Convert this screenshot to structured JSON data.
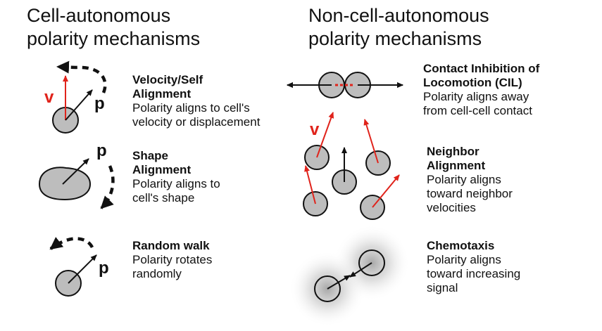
{
  "colors": {
    "velocity": "#e0231b",
    "polarity": "#111111",
    "cell_fill": "#bdbdbd",
    "cell_stroke": "#111111"
  },
  "left_column": {
    "heading_line1": "Cell-autonomous",
    "heading_line2": "polarity mechanisms"
  },
  "right_column": {
    "heading_line1": "Non-cell-autonomous",
    "heading_line2": "polarity mechanisms"
  },
  "mechanisms": {
    "velocity_alignment": {
      "title_line1": "Velocity/Self",
      "title_line2": "Alignment",
      "desc_line1": "Polarity aligns to cell's",
      "desc_line2": "velocity or displacement",
      "v_label": "v",
      "p_label": "p"
    },
    "shape_alignment": {
      "title_line1": "Shape",
      "title_line2": "Alignment",
      "desc_line1": "Polarity aligns to",
      "desc_line2": "cell's shape",
      "p_label": "p"
    },
    "random_walk": {
      "title_line1": "Random walk",
      "desc_line1": "Polarity rotates",
      "desc_line2": "randomly",
      "p_label": "p"
    },
    "cil": {
      "title_line1": "Contact Inhibition of",
      "title_line2": "Locomotion (CIL)",
      "desc_line1": "Polarity aligns away",
      "desc_line2": "from cell-cell contact"
    },
    "neighbor_alignment": {
      "title_line1": "Neighbor",
      "title_line2": "Alignment",
      "desc_line1": "Polarity aligns",
      "desc_line2": "toward neighbor",
      "desc_line3": "velocities",
      "v_label": "v"
    },
    "chemotaxis": {
      "title_line1": "Chemotaxis",
      "desc_line1": "Polarity aligns",
      "desc_line2": "toward increasing",
      "desc_line3": "signal"
    }
  }
}
